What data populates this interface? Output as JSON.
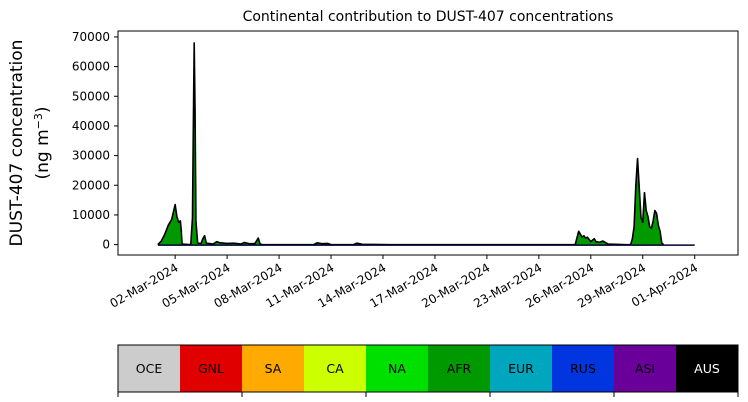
{
  "chart_data": {
    "type": "area",
    "title": "Continental contribution to DUST-407 concentrations",
    "ylabel_line1": "DUST-407 concentration",
    "ylabel_line2": "(ng m",
    "ylabel_unit_exp": "−3",
    "ylabel_close": ")",
    "xlabel": "",
    "ylim": [
      -3500,
      72000
    ],
    "xlim_days": [
      -3.3,
      32.5
    ],
    "yticks": [
      0,
      10000,
      20000,
      30000,
      40000,
      50000,
      60000,
      70000
    ],
    "xticks": [
      {
        "day": 0,
        "label": "02-Mar-2024"
      },
      {
        "day": 3,
        "label": "05-Mar-2024"
      },
      {
        "day": 6,
        "label": "08-Mar-2024"
      },
      {
        "day": 9,
        "label": "11-Mar-2024"
      },
      {
        "day": 12,
        "label": "14-Mar-2024"
      },
      {
        "day": 15,
        "label": "17-Mar-2024"
      },
      {
        "day": 18,
        "label": "20-Mar-2024"
      },
      {
        "day": 21,
        "label": "23-Mar-2024"
      },
      {
        "day": 24,
        "label": "26-Mar-2024"
      },
      {
        "day": 27,
        "label": "29-Mar-2024"
      },
      {
        "day": 30,
        "label": "01-Apr-2024"
      }
    ],
    "grid": false,
    "series": [
      {
        "color": "#009a00",
        "points": [
          [
            -1.0,
            0
          ],
          [
            -0.8,
            1200
          ],
          [
            -0.6,
            3500
          ],
          [
            -0.4,
            6500
          ],
          [
            -0.2,
            8500
          ],
          [
            -0.1,
            11000
          ],
          [
            0.0,
            13500
          ],
          [
            0.1,
            9500
          ],
          [
            0.2,
            7500
          ],
          [
            0.3,
            8000
          ],
          [
            0.35,
            5000
          ],
          [
            0.4,
            200
          ],
          [
            0.9,
            0
          ],
          [
            1.0,
            9000
          ],
          [
            1.05,
            40000
          ],
          [
            1.1,
            68000
          ],
          [
            1.15,
            45000
          ],
          [
            1.2,
            8000
          ],
          [
            1.3,
            500
          ],
          [
            1.5,
            400
          ],
          [
            1.6,
            2000
          ],
          [
            1.7,
            3000
          ],
          [
            1.8,
            500
          ],
          [
            2.2,
            200
          ],
          [
            2.4,
            1000
          ],
          [
            2.6,
            600
          ],
          [
            3.0,
            400
          ],
          [
            3.4,
            500
          ],
          [
            3.8,
            200
          ],
          [
            4.0,
            700
          ],
          [
            4.3,
            300
          ],
          [
            4.6,
            300
          ],
          [
            4.8,
            2200
          ],
          [
            4.9,
            300
          ],
          [
            5.0,
            0
          ],
          [
            8.0,
            0
          ],
          [
            8.2,
            600
          ],
          [
            8.5,
            300
          ],
          [
            8.8,
            400
          ],
          [
            9.0,
            0
          ],
          [
            10.3,
            0
          ],
          [
            10.5,
            500
          ],
          [
            10.8,
            100
          ],
          [
            12.5,
            0
          ],
          [
            23.1,
            0
          ],
          [
            23.3,
            4500
          ],
          [
            23.5,
            2500
          ],
          [
            23.6,
            3000
          ],
          [
            23.7,
            2200
          ],
          [
            23.8,
            2500
          ],
          [
            24.0,
            1000
          ],
          [
            24.2,
            2000
          ],
          [
            24.3,
            1000
          ],
          [
            24.5,
            800
          ],
          [
            24.7,
            1200
          ],
          [
            25.0,
            200
          ],
          [
            26.0,
            0
          ],
          [
            26.3,
            0
          ],
          [
            26.4,
            2000
          ],
          [
            26.5,
            6000
          ],
          [
            26.6,
            20000
          ],
          [
            26.7,
            29000
          ],
          [
            26.8,
            19000
          ],
          [
            26.9,
            9000
          ],
          [
            27.0,
            7500
          ],
          [
            27.1,
            17500
          ],
          [
            27.2,
            11500
          ],
          [
            27.3,
            9500
          ],
          [
            27.4,
            6000
          ],
          [
            27.5,
            5500
          ],
          [
            27.6,
            8000
          ],
          [
            27.7,
            11500
          ],
          [
            27.8,
            10500
          ],
          [
            27.9,
            6500
          ],
          [
            28.0,
            4500
          ],
          [
            28.1,
            500
          ],
          [
            28.2,
            0
          ]
        ]
      }
    ],
    "legend": {
      "placement": "bottom",
      "entries": [
        {
          "label": "OCE",
          "color": "#cccccc",
          "text_color": "#000000"
        },
        {
          "label": "GNL",
          "color": "#e00000",
          "text_color": "#000000"
        },
        {
          "label": "SA",
          "color": "#ffaa00",
          "text_color": "#000000"
        },
        {
          "label": "CA",
          "color": "#ccff00",
          "text_color": "#000000"
        },
        {
          "label": "NA",
          "color": "#00e000",
          "text_color": "#000000"
        },
        {
          "label": "AFR",
          "color": "#009a00",
          "text_color": "#000000"
        },
        {
          "label": "EUR",
          "color": "#00a6bd",
          "text_color": "#000000"
        },
        {
          "label": "RUS",
          "color": "#0035e0",
          "text_color": "#000000"
        },
        {
          "label": "ASI",
          "color": "#6a0099",
          "text_color": "#000000"
        },
        {
          "label": "AUS",
          "color": "#000000",
          "text_color": "#ffffff"
        }
      ]
    }
  }
}
